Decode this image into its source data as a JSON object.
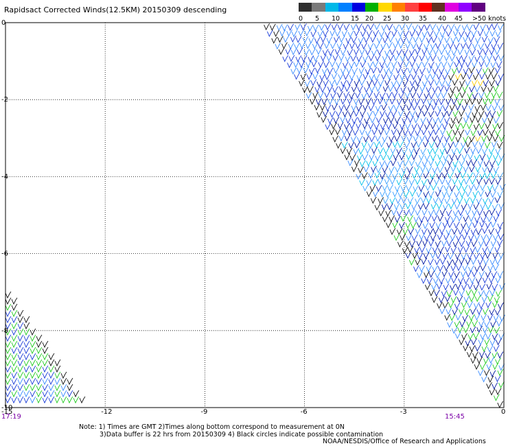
{
  "title": "Rapidsact Corrected Winds(12.5KM) 20150309 descending",
  "legend": {
    "colors": [
      "#2f2f2f",
      "#7a7a7a",
      "#00b8e8",
      "#0080ff",
      "#0000e0",
      "#00b000",
      "#ffd800",
      "#ff8000",
      "#ff4040",
      "#ff0000",
      "#603020",
      "#e000e0",
      "#9000ff",
      "#600080"
    ],
    "labels": [
      "0",
      "5",
      "10",
      "15",
      "20",
      "25",
      "30",
      "35",
      "40",
      "45",
      ">50 knots"
    ]
  },
  "chart_data": {
    "type": "scatter",
    "title": "Rapidsact Corrected Winds(12.5KM) 20150309 descending",
    "xlim": [
      -15,
      0
    ],
    "ylim": [
      -10,
      0
    ],
    "x_ticks": [
      "-12",
      "-9",
      "-6",
      "-3",
      "0"
    ],
    "y_ticks": [
      "0",
      "-2",
      "-4",
      "-6",
      "-8",
      "-10"
    ],
    "x_corner_label": "-15",
    "grid": true,
    "time_left": "17:19",
    "time_right": "15:45",
    "series": [
      {
        "name": "Wind speed (knots)",
        "region": "right swath",
        "x_range": [
          -7,
          0
        ],
        "y_range": [
          -10,
          0
        ]
      },
      {
        "name": "Wind speed (knots)",
        "region": "lower-left swath",
        "x_range": [
          -15,
          -12.5
        ],
        "y_range": [
          -10,
          -7
        ]
      }
    ]
  },
  "notes": {
    "line1": "Note: 1) Times are GMT 2)Times along bottom correspond to measurement at 0N",
    "line2": "3)Data buffer is 22 hrs from 20150309 4) Black circles indicate possible contamination",
    "credit": "NOAA/NESDIS/Office of Research and Applications"
  }
}
